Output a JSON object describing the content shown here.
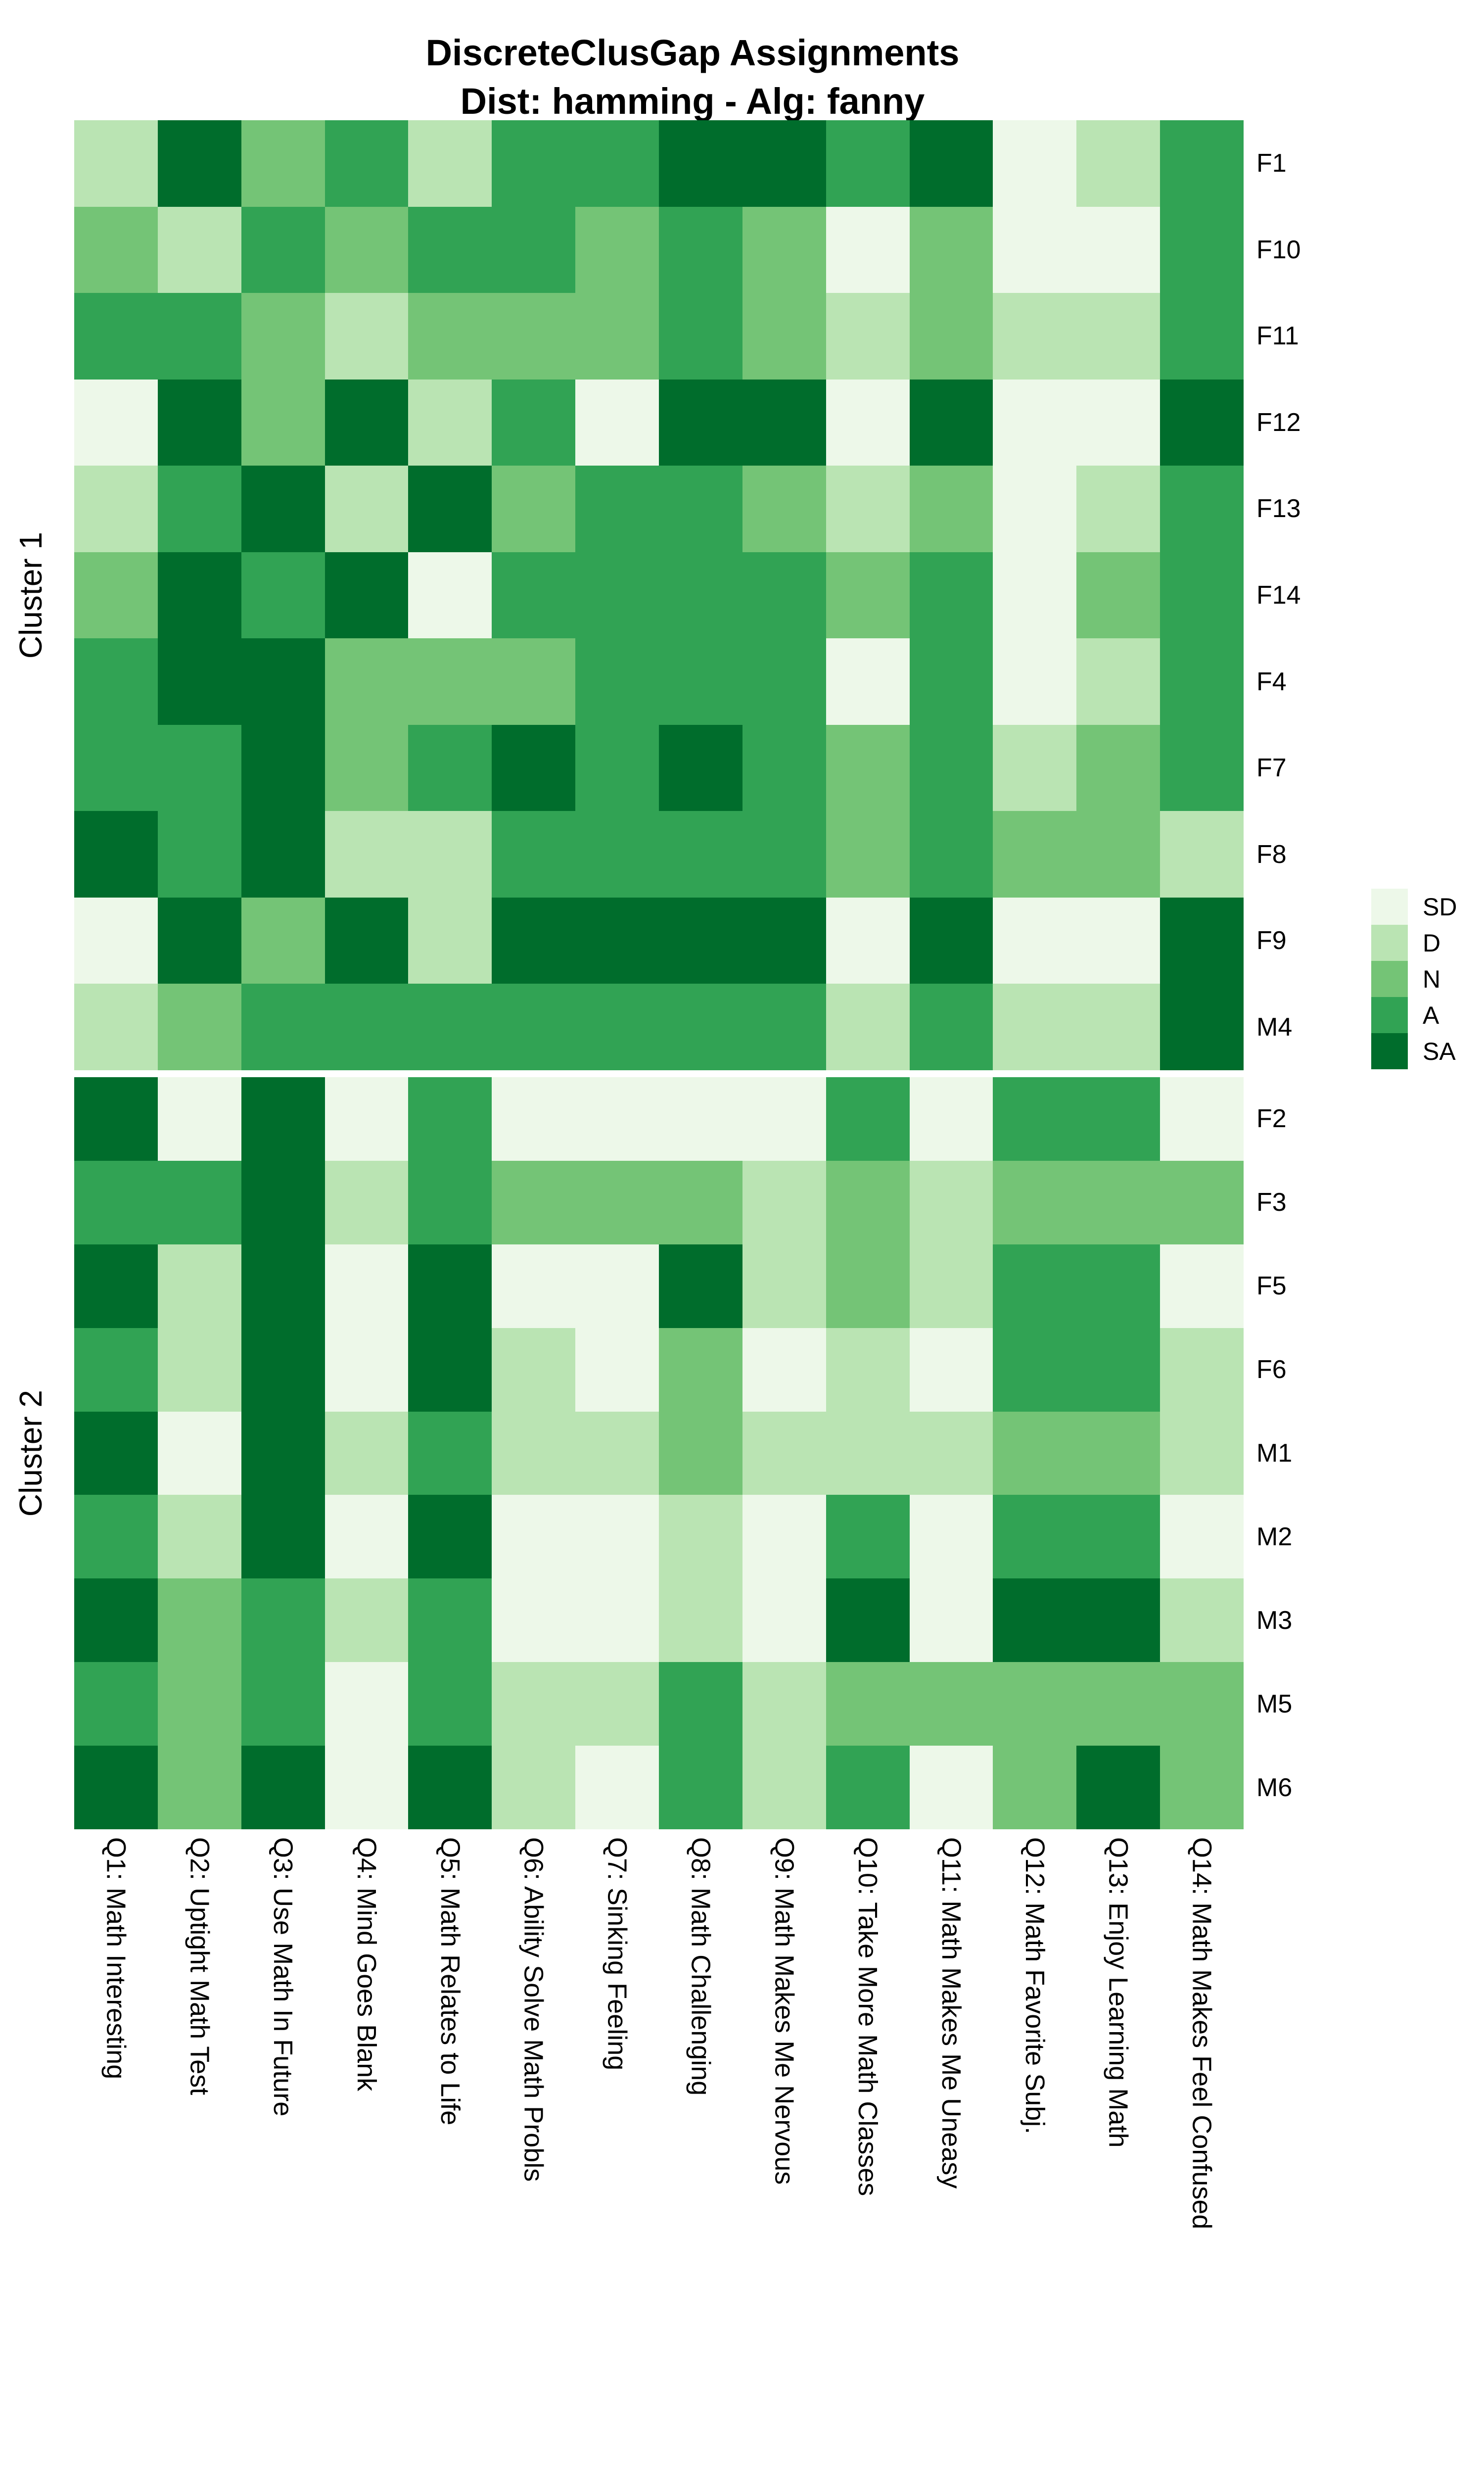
{
  "title": {
    "line1": "DiscreteClusGap Assignments",
    "line2": "Dist: hamming - Alg: fanny"
  },
  "legend": {
    "entries": [
      {
        "label": "SD",
        "color": "#EDF8E9"
      },
      {
        "label": "D",
        "color": "#BAE4B3"
      },
      {
        "label": "N",
        "color": "#74C476"
      },
      {
        "label": "A",
        "color": "#31A354"
      },
      {
        "label": "SA",
        "color": "#006D2C"
      }
    ]
  },
  "chart_data": {
    "type": "heatmap",
    "title": "DiscreteClusGap Assignments",
    "subtitle": "Dist: hamming - Alg: fanny",
    "value_scale": [
      "SD",
      "D",
      "N",
      "A",
      "SA"
    ],
    "colors": {
      "SD": "#EDF8E9",
      "D": "#BAE4B3",
      "N": "#74C476",
      "A": "#31A354",
      "SA": "#006D2C"
    },
    "legend_position": "right",
    "grid_lines": false,
    "columns": [
      "Q1: Math Interesting",
      "Q2: Uptight Math Test",
      "Q3: Use Math In Future",
      "Q4: Mind Goes Blank",
      "Q5: Math Relates to Life",
      "Q6: Ability Solve Math Probls",
      "Q7: Sinking Feeling",
      "Q8: Math Challenging",
      "Q9: Math Makes Me Nervous",
      "Q10: Take More Math Classes",
      "Q11: Math Makes Me Uneasy",
      "Q12: Math Favorite Subj.",
      "Q13: Enjoy Learning Math",
      "Q14: Math Makes Feel Confused"
    ],
    "clusters": [
      {
        "label": "Cluster 1",
        "rows": [
          {
            "id": "F1",
            "values": [
              "D",
              "SA",
              "N",
              "A",
              "D",
              "A",
              "A",
              "SA",
              "SA",
              "A",
              "SA",
              "SD",
              "D",
              "A"
            ]
          },
          {
            "id": "F10",
            "values": [
              "N",
              "D",
              "A",
              "N",
              "A",
              "A",
              "N",
              "A",
              "N",
              "SD",
              "N",
              "SD",
              "SD",
              "A"
            ]
          },
          {
            "id": "F11",
            "values": [
              "A",
              "A",
              "N",
              "D",
              "N",
              "N",
              "N",
              "A",
              "N",
              "D",
              "N",
              "D",
              "D",
              "A"
            ]
          },
          {
            "id": "F12",
            "values": [
              "SD",
              "SA",
              "N",
              "SA",
              "D",
              "A",
              "SD",
              "SA",
              "SA",
              "SD",
              "SA",
              "SD",
              "SD",
              "SA"
            ]
          },
          {
            "id": "F13",
            "values": [
              "D",
              "A",
              "SA",
              "D",
              "SA",
              "N",
              "A",
              "A",
              "N",
              "D",
              "N",
              "SD",
              "D",
              "A"
            ]
          },
          {
            "id": "F14",
            "values": [
              "N",
              "SA",
              "A",
              "SA",
              "SD",
              "A",
              "A",
              "A",
              "A",
              "N",
              "A",
              "SD",
              "N",
              "A"
            ]
          },
          {
            "id": "F4",
            "values": [
              "A",
              "SA",
              "SA",
              "N",
              "N",
              "N",
              "A",
              "A",
              "A",
              "SD",
              "A",
              "SD",
              "D",
              "A"
            ]
          },
          {
            "id": "F7",
            "values": [
              "A",
              "A",
              "SA",
              "N",
              "A",
              "SA",
              "A",
              "SA",
              "A",
              "N",
              "A",
              "D",
              "N",
              "A"
            ]
          },
          {
            "id": "F8",
            "values": [
              "SA",
              "A",
              "SA",
              "D",
              "D",
              "A",
              "A",
              "A",
              "A",
              "N",
              "A",
              "N",
              "N",
              "D"
            ]
          },
          {
            "id": "F9",
            "values": [
              "SD",
              "SA",
              "N",
              "SA",
              "D",
              "SA",
              "SA",
              "SA",
              "SA",
              "SD",
              "SA",
              "SD",
              "SD",
              "SA"
            ]
          },
          {
            "id": "M4",
            "values": [
              "D",
              "N",
              "A",
              "A",
              "A",
              "A",
              "A",
              "A",
              "A",
              "D",
              "A",
              "D",
              "D",
              "SA"
            ]
          }
        ]
      },
      {
        "label": "Cluster 2",
        "rows": [
          {
            "id": "F2",
            "values": [
              "SA",
              "SD",
              "SA",
              "SD",
              "A",
              "SD",
              "SD",
              "SD",
              "SD",
              "A",
              "SD",
              "A",
              "A",
              "SD"
            ]
          },
          {
            "id": "F3",
            "values": [
              "A",
              "A",
              "SA",
              "D",
              "A",
              "N",
              "N",
              "N",
              "D",
              "N",
              "D",
              "N",
              "N",
              "N"
            ]
          },
          {
            "id": "F5",
            "values": [
              "SA",
              "D",
              "SA",
              "SD",
              "SA",
              "SD",
              "SD",
              "SA",
              "D",
              "N",
              "D",
              "A",
              "A",
              "SD"
            ]
          },
          {
            "id": "F6",
            "values": [
              "A",
              "D",
              "SA",
              "SD",
              "SA",
              "D",
              "SD",
              "N",
              "SD",
              "D",
              "SD",
              "A",
              "A",
              "D"
            ]
          },
          {
            "id": "M1",
            "values": [
              "SA",
              "SD",
              "SA",
              "D",
              "A",
              "D",
              "D",
              "N",
              "D",
              "D",
              "D",
              "N",
              "N",
              "D"
            ]
          },
          {
            "id": "M2",
            "values": [
              "A",
              "D",
              "SA",
              "SD",
              "SA",
              "SD",
              "SD",
              "D",
              "SD",
              "A",
              "SD",
              "A",
              "A",
              "SD"
            ]
          },
          {
            "id": "M3",
            "values": [
              "SA",
              "N",
              "A",
              "D",
              "A",
              "SD",
              "SD",
              "D",
              "SD",
              "SA",
              "SD",
              "SA",
              "SA",
              "D"
            ]
          },
          {
            "id": "M5",
            "values": [
              "A",
              "N",
              "A",
              "SD",
              "A",
              "D",
              "D",
              "A",
              "D",
              "N",
              "N",
              "N",
              "N",
              "N"
            ]
          },
          {
            "id": "M6",
            "values": [
              "SA",
              "N",
              "SA",
              "SD",
              "SA",
              "D",
              "SD",
              "A",
              "D",
              "A",
              "SD",
              "N",
              "SA",
              "N"
            ]
          }
        ]
      }
    ]
  }
}
